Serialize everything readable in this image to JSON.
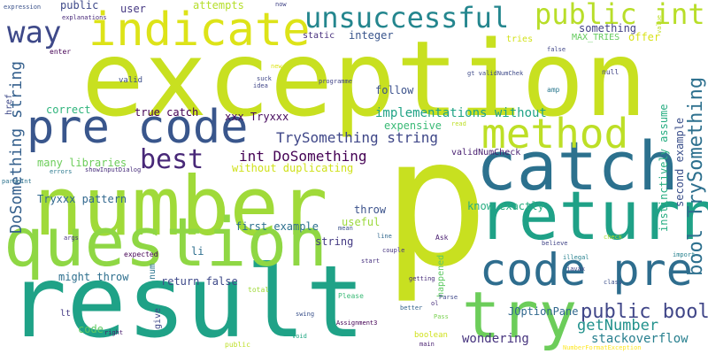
{
  "words": [
    {
      "text": "p",
      "color": "#c8e020",
      "vertical": false
    },
    {
      "text": "exception",
      "color": "#c8e020",
      "vertical": false
    },
    {
      "text": "result",
      "color": "#1fa287",
      "vertical": false
    },
    {
      "text": "number",
      "color": "#a0da39",
      "vertical": false
    },
    {
      "text": "question",
      "color": "#8fd744",
      "vertical": false
    },
    {
      "text": "catch",
      "color": "#2c718e",
      "vertical": false
    },
    {
      "text": "return",
      "color": "#1fa187",
      "vertical": false
    },
    {
      "text": "try",
      "color": "#6ccd5a",
      "vertical": false
    },
    {
      "text": "pre code",
      "color": "#39568c",
      "vertical": false
    },
    {
      "text": "code pre",
      "color": "#2e6d8e",
      "vertical": false
    },
    {
      "text": "indicate",
      "color": "#dde318",
      "vertical": false
    },
    {
      "text": "method",
      "color": "#bddf26",
      "vertical": false
    },
    {
      "text": "unsuccessful",
      "color": "#24868e",
      "vertical": false
    },
    {
      "text": "public int",
      "color": "#b8de29",
      "vertical": false
    },
    {
      "text": "way",
      "color": "#3e4989",
      "vertical": false
    },
    {
      "text": "best",
      "color": "#482878",
      "vertical": false
    },
    {
      "text": "bool TrySomething",
      "color": "#2d708e",
      "vertical": true
    },
    {
      "text": "int DoSomething",
      "color": "#440154",
      "vertical": false
    },
    {
      "text": "TrySomething string",
      "color": "#3f4788",
      "vertical": false
    },
    {
      "text": "DoSomething string",
      "color": "#35608d",
      "vertical": true
    },
    {
      "text": "public bool",
      "color": "#404688",
      "vertical": false
    },
    {
      "text": "getNumber",
      "color": "#21918c",
      "vertical": false
    },
    {
      "text": "stackoverflow",
      "color": "#277f8e",
      "vertical": false
    },
    {
      "text": "wondering",
      "color": "#46337e",
      "vertical": false
    },
    {
      "text": "JOptionPane",
      "color": "#31688e",
      "vertical": false
    },
    {
      "text": "Tryxxx pattern",
      "color": "#31688e",
      "vertical": false
    },
    {
      "text": "implementations without",
      "color": "#20a386",
      "vertical": false
    },
    {
      "text": "expensive",
      "color": "#3aba76",
      "vertical": false
    },
    {
      "text": "without duplicating",
      "color": "#d0e11c",
      "vertical": false
    },
    {
      "text": "integer",
      "color": "#39558c",
      "vertical": false
    },
    {
      "text": "public",
      "color": "#3e4989",
      "vertical": false
    },
    {
      "text": "user",
      "color": "#453882",
      "vertical": false
    },
    {
      "text": "attempts",
      "color": "#b5de2b",
      "vertical": false
    },
    {
      "text": "something",
      "color": "#424086",
      "vertical": false
    },
    {
      "text": "offer",
      "color": "#d8e219",
      "vertical": false
    },
    {
      "text": "MAX_TRIES",
      "color": "#65cb5e",
      "vertical": false
    },
    {
      "text": "tries",
      "color": "#d2e21b",
      "vertical": false
    },
    {
      "text": "static",
      "color": "#472f7d",
      "vertical": false
    },
    {
      "text": "correct",
      "color": "#2fb47c",
      "vertical": false
    },
    {
      "text": "true catch",
      "color": "#440154",
      "vertical": false
    },
    {
      "text": "xxx Tryxxx",
      "color": "#460a5d",
      "vertical": false
    },
    {
      "text": "many libraries",
      "color": "#6ccd5a",
      "vertical": false
    },
    {
      "text": "valid",
      "color": "#3d4e8a",
      "vertical": false
    },
    {
      "text": "follow",
      "color": "#3b528b",
      "vertical": false
    },
    {
      "text": "know exactly",
      "color": "#26ad81",
      "vertical": false
    },
    {
      "text": "second example",
      "color": "#3c508b",
      "vertical": true
    },
    {
      "text": "instinctively assume",
      "color": "#26ad81",
      "vertical": true
    },
    {
      "text": "validNumCheck",
      "color": "#481f70",
      "vertical": false
    },
    {
      "text": "first example",
      "color": "#2d708e",
      "vertical": false
    },
    {
      "text": "useful",
      "color": "#9bd93c",
      "vertical": false
    },
    {
      "text": "throw",
      "color": "#3b528b",
      "vertical": false
    },
    {
      "text": "string",
      "color": "#443a83",
      "vertical": false
    },
    {
      "text": "might throw",
      "color": "#2e6f8e",
      "vertical": false
    },
    {
      "text": "return false",
      "color": "#3e4989",
      "vertical": false
    },
    {
      "text": "happened",
      "color": "#5ec962",
      "vertical": true
    },
    {
      "text": "li",
      "color": "#2e6f8e",
      "vertical": false
    },
    {
      "text": "num",
      "color": "#2b748e",
      "vertical": true
    },
    {
      "text": "give",
      "color": "#3f4889",
      "vertical": true
    },
    {
      "text": "code",
      "color": "#5ec962",
      "vertical": false
    },
    {
      "text": "lt",
      "color": "#443983",
      "vertical": false
    },
    {
      "text": "href",
      "color": "#3e4989",
      "vertical": true
    },
    {
      "text": "Ask",
      "color": "#481d6f",
      "vertical": false
    },
    {
      "text": "boolean",
      "color": "#d0e11c",
      "vertical": false
    },
    {
      "text": "Please",
      "color": "#3aba76",
      "vertical": false
    },
    {
      "text": "expression",
      "color": "#3b528b",
      "vertical": false
    },
    {
      "text": "public",
      "color": "#bddf26",
      "vertical": false
    },
    {
      "text": "explanations",
      "color": "#482979",
      "vertical": false
    },
    {
      "text": "now",
      "color": "#414487",
      "vertical": false
    },
    {
      "text": "enter",
      "color": "#440154",
      "vertical": false
    },
    {
      "text": "errors",
      "color": "#2a788e",
      "vertical": false
    },
    {
      "text": "showInputDialog",
      "color": "#472d7b",
      "vertical": false
    },
    {
      "text": "parseInt",
      "color": "#2c738e",
      "vertical": false
    },
    {
      "text": "args",
      "color": "#46337e",
      "vertical": false
    },
    {
      "text": "expected",
      "color": "#440154",
      "vertical": false
    },
    {
      "text": "right",
      "color": "#481b6d",
      "vertical": false
    },
    {
      "text": "total",
      "color": "#a0da39",
      "vertical": false
    },
    {
      "text": "swing",
      "color": "#3b528b",
      "vertical": false
    },
    {
      "text": "void",
      "color": "#22a884",
      "vertical": false
    },
    {
      "text": "Assignment3",
      "color": "#440154",
      "vertical": false
    },
    {
      "text": "idea",
      "color": "#404688",
      "vertical": false
    },
    {
      "text": "suck",
      "color": "#3f4788",
      "vertical": false
    },
    {
      "text": "new",
      "color": "#dde318",
      "vertical": false
    },
    {
      "text": "programme",
      "color": "#414487",
      "vertical": false
    },
    {
      "text": "gt validNumChek",
      "color": "#3e4a89",
      "vertical": false
    },
    {
      "text": "amp",
      "color": "#2a788e",
      "vertical": false
    },
    {
      "text": "null",
      "color": "#414487",
      "vertical": false
    },
    {
      "text": "false",
      "color": "#404688",
      "vertical": false
    },
    {
      "text": "value",
      "color": "#bddf26",
      "vertical": true
    },
    {
      "text": "read",
      "color": "#bddf26",
      "vertical": false
    },
    {
      "text": "check",
      "color": "#addc30",
      "vertical": false
    },
    {
      "text": "mean",
      "color": "#3b528b",
      "vertical": false
    },
    {
      "text": "line",
      "color": "#31688e",
      "vertical": false
    },
    {
      "text": "couple",
      "color": "#463480",
      "vertical": false
    },
    {
      "text": "believe",
      "color": "#414487",
      "vertical": false
    },
    {
      "text": "illegal",
      "color": "#26818e",
      "vertical": false
    },
    {
      "text": "start",
      "color": "#46307e",
      "vertical": false
    },
    {
      "text": "getting",
      "color": "#472c7a",
      "vertical": false
    },
    {
      "text": "javax",
      "color": "#3f4889",
      "vertical": false
    },
    {
      "text": "import",
      "color": "#26818e",
      "vertical": false
    },
    {
      "text": "class",
      "color": "#3c508b",
      "vertical": false
    },
    {
      "text": "ol",
      "color": "#472d7b",
      "vertical": false
    },
    {
      "text": "Parse",
      "color": "#3f4889",
      "vertical": false
    },
    {
      "text": "better",
      "color": "#33638d",
      "vertical": false
    },
    {
      "text": "Pass",
      "color": "#7ad151",
      "vertical": false
    },
    {
      "text": "main",
      "color": "#481f70",
      "vertical": false
    },
    {
      "text": "NumberFormatException",
      "color": "#fde725",
      "vertical": false
    }
  ]
}
